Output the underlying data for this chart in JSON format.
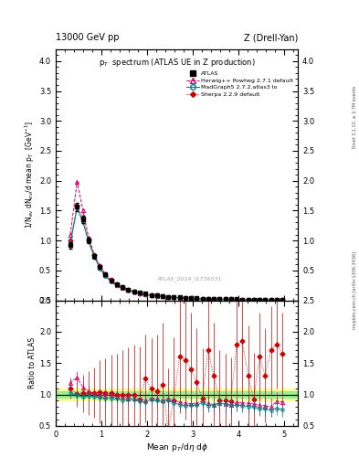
{
  "title_left": "13000 GeV pp",
  "title_right": "Z (Drell-Yan)",
  "plot_title": "p$_T$  spectrum (ATLAS UE in Z production)",
  "ylabel_main": "1/N$_{ev}$ dN$_{ev}$/d mean p$_T$  [GeV]$^{-1}$",
  "ylabel_ratio": "Ratio to ATLAS",
  "xlabel": "Mean p$_T$/d$\\eta$ d$\\phi$",
  "watermark": "ATLAS_2019_I1736531",
  "right_label_top": "Rivet 3.1.10, ≥ 2.7M events",
  "right_label_bottom": "mcplots.cern.ch [arXiv:1306.3436]",
  "atlas_x": [
    0.32,
    0.47,
    0.6,
    0.72,
    0.85,
    0.97,
    1.09,
    1.22,
    1.34,
    1.47,
    1.59,
    1.71,
    1.84,
    1.96,
    2.09,
    2.21,
    2.34,
    2.46,
    2.58,
    2.71,
    2.83,
    2.96,
    3.08,
    3.21,
    3.33,
    3.46,
    3.58,
    3.71,
    3.83,
    3.96,
    4.08,
    4.21,
    4.33,
    4.46,
    4.58,
    4.71,
    4.83,
    4.96
  ],
  "atlas_y": [
    0.92,
    1.56,
    1.35,
    1.0,
    0.74,
    0.56,
    0.43,
    0.33,
    0.27,
    0.22,
    0.18,
    0.15,
    0.13,
    0.11,
    0.09,
    0.08,
    0.07,
    0.06,
    0.055,
    0.05,
    0.045,
    0.04,
    0.035,
    0.03,
    0.028,
    0.025,
    0.022,
    0.02,
    0.018,
    0.016,
    0.015,
    0.014,
    0.013,
    0.012,
    0.011,
    0.01,
    0.009,
    0.009
  ],
  "atlas_yerr": [
    0.05,
    0.07,
    0.06,
    0.05,
    0.04,
    0.03,
    0.025,
    0.02,
    0.015,
    0.012,
    0.01,
    0.009,
    0.008,
    0.007,
    0.006,
    0.005,
    0.005,
    0.004,
    0.004,
    0.003,
    0.003,
    0.003,
    0.003,
    0.002,
    0.002,
    0.002,
    0.002,
    0.002,
    0.001,
    0.001,
    0.001,
    0.001,
    0.001,
    0.001,
    0.001,
    0.001,
    0.001,
    0.001
  ],
  "herwig_x": [
    0.32,
    0.47,
    0.6,
    0.72,
    0.85,
    0.97,
    1.09,
    1.22,
    1.34,
    1.47,
    1.59,
    1.71,
    1.84,
    1.96,
    2.09,
    2.21,
    2.34,
    2.46,
    2.58,
    2.71,
    2.83,
    2.96,
    3.08,
    3.21,
    3.33,
    3.46,
    3.58,
    3.71,
    3.83,
    3.96,
    4.08,
    4.21,
    4.33,
    4.46,
    4.58,
    4.71,
    4.83,
    4.96
  ],
  "herwig_y": [
    1.1,
    1.98,
    1.5,
    1.05,
    0.75,
    0.56,
    0.42,
    0.33,
    0.26,
    0.21,
    0.17,
    0.14,
    0.12,
    0.1,
    0.085,
    0.074,
    0.064,
    0.056,
    0.05,
    0.044,
    0.039,
    0.034,
    0.03,
    0.027,
    0.024,
    0.021,
    0.019,
    0.017,
    0.015,
    0.014,
    0.013,
    0.012,
    0.011,
    0.01,
    0.009,
    0.008,
    0.008,
    0.007
  ],
  "herwig_color": "#d4006e",
  "herwig_ratio": [
    1.19,
    1.27,
    1.11,
    1.05,
    1.01,
    1.0,
    0.98,
    1.0,
    0.96,
    0.95,
    0.94,
    0.93,
    0.92,
    0.91,
    0.94,
    0.93,
    0.91,
    0.93,
    0.91,
    0.88,
    0.87,
    0.85,
    0.86,
    0.9,
    0.86,
    0.84,
    0.86,
    0.85,
    0.83,
    0.875,
    0.87,
    0.86,
    0.85,
    0.83,
    0.82,
    0.8,
    0.89,
    0.88
  ],
  "herwig_ratio_err": [
    0.08,
    0.1,
    0.1,
    0.09,
    0.09,
    0.09,
    0.09,
    0.1,
    0.09,
    0.09,
    0.09,
    0.1,
    0.1,
    0.1,
    0.1,
    0.1,
    0.11,
    0.11,
    0.11,
    0.11,
    0.12,
    0.12,
    0.12,
    0.12,
    0.13,
    0.13,
    0.13,
    0.13,
    0.14,
    0.14,
    0.14,
    0.14,
    0.14,
    0.15,
    0.15,
    0.15,
    0.15,
    0.15
  ],
  "madgraph_x": [
    0.32,
    0.47,
    0.6,
    0.72,
    0.85,
    0.97,
    1.09,
    1.22,
    1.34,
    1.47,
    1.59,
    1.71,
    1.84,
    1.96,
    2.09,
    2.21,
    2.34,
    2.46,
    2.58,
    2.71,
    2.83,
    2.96,
    3.08,
    3.21,
    3.33,
    3.46,
    3.58,
    3.71,
    3.83,
    3.96,
    4.08,
    4.21,
    4.33,
    4.46,
    4.58,
    4.71,
    4.83,
    4.96
  ],
  "madgraph_y": [
    0.95,
    1.55,
    1.3,
    0.98,
    0.72,
    0.53,
    0.4,
    0.31,
    0.25,
    0.2,
    0.165,
    0.138,
    0.115,
    0.097,
    0.083,
    0.072,
    0.062,
    0.054,
    0.048,
    0.042,
    0.037,
    0.033,
    0.029,
    0.026,
    0.023,
    0.021,
    0.019,
    0.017,
    0.015,
    0.014,
    0.013,
    0.012,
    0.011,
    0.01,
    0.009,
    0.008,
    0.008,
    0.007
  ],
  "madgraph_color": "#008080",
  "madgraph_ratio": [
    1.03,
    0.99,
    0.96,
    0.98,
    0.97,
    0.95,
    0.93,
    0.94,
    0.93,
    0.91,
    0.92,
    0.92,
    0.89,
    0.88,
    0.92,
    0.9,
    0.89,
    0.9,
    0.87,
    0.84,
    0.82,
    0.83,
    0.83,
    0.87,
    0.82,
    0.84,
    0.86,
    0.85,
    0.83,
    0.83,
    0.82,
    0.81,
    0.8,
    0.77,
    0.77,
    0.75,
    0.78,
    0.76
  ],
  "madgraph_ratio_err": [
    0.07,
    0.07,
    0.07,
    0.07,
    0.07,
    0.07,
    0.07,
    0.07,
    0.07,
    0.07,
    0.07,
    0.08,
    0.08,
    0.08,
    0.08,
    0.08,
    0.09,
    0.09,
    0.09,
    0.09,
    0.09,
    0.09,
    0.09,
    0.09,
    0.1,
    0.1,
    0.1,
    0.1,
    0.1,
    0.1,
    0.1,
    0.1,
    0.1,
    0.11,
    0.11,
    0.11,
    0.11,
    0.11
  ],
  "sherpa_x": [
    0.32,
    0.47,
    0.6,
    0.72,
    0.85,
    0.97,
    1.09,
    1.22,
    1.34,
    1.47,
    1.59,
    1.71,
    1.84,
    1.96,
    2.09,
    2.21,
    2.34,
    2.46,
    2.58,
    2.71,
    2.83,
    2.96,
    3.08,
    3.21,
    3.33,
    3.46,
    3.58,
    3.71,
    3.83,
    3.96,
    4.08,
    4.21,
    4.33,
    4.46,
    4.58,
    4.71,
    4.83,
    4.96
  ],
  "sherpa_y": [
    1.0,
    1.58,
    1.38,
    1.02,
    0.76,
    0.58,
    0.44,
    0.34,
    0.27,
    0.22,
    0.18,
    0.15,
    0.12,
    0.1,
    0.09,
    0.08,
    0.07,
    0.06,
    0.05,
    0.045,
    0.04,
    0.035,
    0.03,
    0.028,
    0.025,
    0.022,
    0.02,
    0.018,
    0.016,
    0.015,
    0.014,
    0.013,
    0.012,
    0.011,
    0.01,
    0.009,
    0.009,
    0.008
  ],
  "sherpa_color": "#cc0000",
  "sherpa_ratio": [
    1.09,
    1.01,
    1.02,
    1.02,
    1.03,
    1.04,
    1.02,
    1.03,
    1.0,
    1.0,
    1.0,
    1.0,
    0.92,
    1.25,
    1.1,
    1.05,
    1.15,
    0.42,
    0.91,
    1.6,
    1.55,
    1.4,
    1.2,
    0.93,
    1.7,
    1.3,
    0.91,
    0.9,
    0.89,
    1.8,
    1.85,
    1.3,
    0.92,
    1.6,
    1.3,
    1.7,
    1.8,
    1.65
  ],
  "sherpa_ratio_err": [
    0.15,
    0.2,
    0.3,
    0.35,
    0.4,
    0.5,
    0.55,
    0.6,
    0.65,
    0.7,
    0.75,
    0.8,
    0.85,
    0.7,
    0.8,
    0.9,
    1.0,
    1.0,
    1.0,
    0.9,
    0.95,
    0.9,
    0.85,
    0.8,
    0.9,
    0.85,
    0.8,
    0.75,
    0.7,
    0.8,
    0.85,
    0.8,
    0.75,
    0.7,
    0.75,
    0.7,
    0.7,
    0.65
  ],
  "band_color_green": "#90ee90",
  "band_color_yellow": "#ffff99",
  "ylim_main": [
    0,
    4.2
  ],
  "ylim_ratio": [
    0.5,
    2.5
  ],
  "xlim": [
    0,
    5.3
  ],
  "yticks_main": [
    0,
    0.5,
    1.0,
    1.5,
    2.0,
    2.5,
    3.0,
    3.5,
    4.0
  ],
  "yticks_ratio": [
    0.5,
    1.0,
    1.5,
    2.0,
    2.5
  ]
}
